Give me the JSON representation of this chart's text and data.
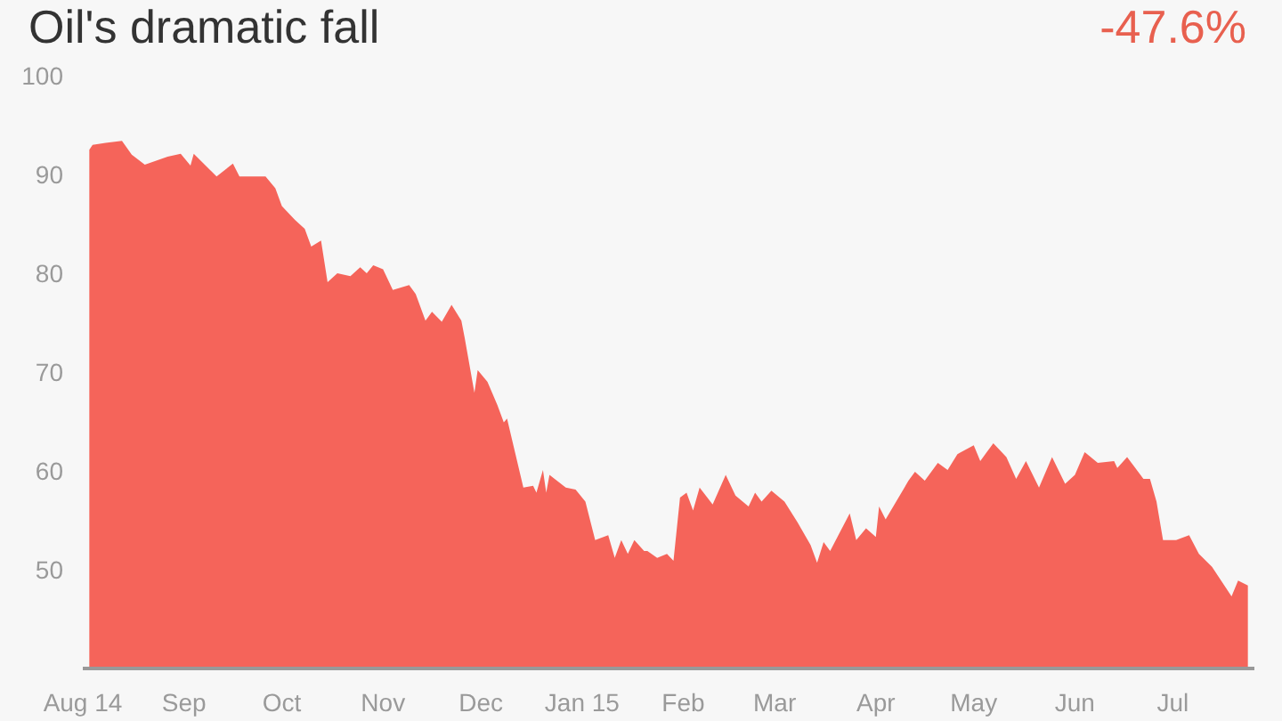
{
  "chart_data": {
    "type": "area",
    "title": "Oil's dramatic fall",
    "annotations": [
      "-47.6%"
    ],
    "x": [
      "2014-08-03",
      "2014-08-04",
      "2014-08-08",
      "2014-08-13",
      "2014-08-16",
      "2014-08-20",
      "2014-08-27",
      "2014-08-31",
      "2014-09-03",
      "2014-09-04",
      "2014-09-11",
      "2014-09-16",
      "2014-09-18",
      "2014-09-23",
      "2014-09-26",
      "2014-09-29",
      "2014-10-01",
      "2014-10-05",
      "2014-10-08",
      "2014-10-10",
      "2014-10-13",
      "2014-10-15",
      "2014-10-18",
      "2014-10-22",
      "2014-10-25",
      "2014-10-27",
      "2014-10-29",
      "2014-11-01",
      "2014-11-04",
      "2014-11-09",
      "2014-11-11",
      "2014-11-14",
      "2014-11-16",
      "2014-11-19",
      "2014-11-22",
      "2014-11-25",
      "2014-11-26",
      "2014-11-29",
      "2014-11-30",
      "2014-12-03",
      "2014-12-06",
      "2014-12-08",
      "2014-12-09",
      "2014-12-14",
      "2014-12-17",
      "2014-12-18",
      "2014-12-20",
      "2014-12-21",
      "2014-12-22",
      "2014-12-27",
      "2014-12-30",
      "2015-01-02",
      "2015-01-05",
      "2015-01-09",
      "2015-01-11",
      "2015-01-13",
      "2015-01-15",
      "2015-01-17",
      "2015-01-20",
      "2015-01-21",
      "2015-01-24",
      "2015-01-27",
      "2015-01-29",
      "2015-01-31",
      "2015-02-02",
      "2015-02-04",
      "2015-02-06",
      "2015-02-10",
      "2015-02-14",
      "2015-02-17",
      "2015-02-21",
      "2015-02-23",
      "2015-02-25",
      "2015-02-28",
      "2015-03-04",
      "2015-03-08",
      "2015-03-12",
      "2015-03-14",
      "2015-03-16",
      "2015-03-18",
      "2015-03-24",
      "2015-03-26",
      "2015-03-29",
      "2015-04-01",
      "2015-04-02",
      "2015-04-04",
      "2015-04-11",
      "2015-04-13",
      "2015-04-16",
      "2015-04-20",
      "2015-04-23",
      "2015-04-26",
      "2015-05-01",
      "2015-05-03",
      "2015-05-07",
      "2015-05-11",
      "2015-05-14",
      "2015-05-17",
      "2015-05-21",
      "2015-05-25",
      "2015-05-29",
      "2015-06-01",
      "2015-06-04",
      "2015-06-08",
      "2015-06-13",
      "2015-06-14",
      "2015-06-17",
      "2015-06-22",
      "2015-06-24",
      "2015-06-26",
      "2015-06-28",
      "2015-07-02",
      "2015-07-06",
      "2015-07-09",
      "2015-07-13",
      "2015-07-19",
      "2015-07-21",
      "2015-07-24"
    ],
    "series": [
      {
        "color": "#f5645a",
        "values": [
          92.5,
          93.0,
          93.2,
          93.4,
          92.0,
          91.0,
          91.8,
          92.1,
          90.9,
          92.1,
          89.8,
          91.1,
          89.8,
          89.8,
          89.8,
          88.6,
          86.8,
          85.4,
          84.5,
          82.7,
          83.3,
          79.1,
          80.0,
          79.7,
          80.6,
          80.0,
          80.8,
          80.4,
          78.3,
          78.8,
          77.9,
          75.2,
          76.1,
          75.1,
          76.8,
          75.2,
          73.5,
          67.9,
          70.2,
          69.0,
          66.7,
          64.9,
          65.3,
          58.3,
          58.5,
          57.8,
          60.1,
          57.8,
          59.6,
          58.3,
          58.1,
          56.9,
          53.0,
          53.5,
          51.2,
          53.0,
          51.6,
          53.0,
          51.9,
          51.9,
          51.2,
          51.6,
          50.9,
          57.3,
          57.8,
          56.0,
          58.3,
          56.6,
          59.6,
          57.5,
          56.4,
          57.8,
          56.9,
          58.0,
          56.9,
          54.8,
          52.5,
          50.7,
          52.8,
          51.9,
          55.7,
          53.0,
          54.2,
          53.3,
          56.4,
          55.1,
          59.0,
          59.9,
          59.0,
          60.8,
          60.1,
          61.7,
          62.6,
          61.0,
          62.8,
          61.4,
          59.2,
          61.0,
          58.3,
          61.4,
          58.7,
          59.6,
          61.9,
          60.8,
          61.0,
          60.3,
          61.4,
          59.2,
          59.2,
          56.9,
          53.0,
          53.0,
          53.5,
          51.6,
          50.3,
          47.3,
          48.9,
          48.4
        ]
      }
    ],
    "ylim": [
      40,
      100
    ],
    "yticks": [
      50,
      60,
      70,
      80,
      90,
      100
    ],
    "xlim": [
      "2014-08-01",
      "2015-07-26"
    ],
    "xticks": [
      {
        "value": "2014-08-01",
        "label": "Aug 14"
      },
      {
        "value": "2014-09-01",
        "label": "Sep"
      },
      {
        "value": "2014-10-01",
        "label": "Oct"
      },
      {
        "value": "2014-11-01",
        "label": "Nov"
      },
      {
        "value": "2014-12-01",
        "label": "Dec"
      },
      {
        "value": "2015-01-01",
        "label": "Jan 15"
      },
      {
        "value": "2015-02-01",
        "label": "Feb"
      },
      {
        "value": "2015-03-01",
        "label": "Mar"
      },
      {
        "value": "2015-04-01",
        "label": "Apr"
      },
      {
        "value": "2015-05-01",
        "label": "May"
      },
      {
        "value": "2015-06-01",
        "label": "Jun"
      },
      {
        "value": "2015-07-01",
        "label": "Jul"
      }
    ],
    "grid": false
  }
}
